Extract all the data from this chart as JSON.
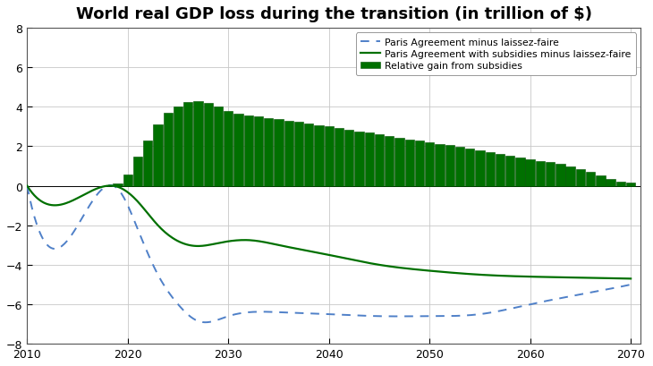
{
  "title": "World real GDP loss during the transition (in trillion of $)",
  "title_fontsize": 13,
  "title_fontweight": "bold",
  "xlim": [
    2010,
    2071
  ],
  "ylim": [
    -8,
    8
  ],
  "yticks": [
    -8,
    -6,
    -4,
    -2,
    0,
    2,
    4,
    6,
    8
  ],
  "xticks": [
    2010,
    2020,
    2030,
    2040,
    2050,
    2060,
    2070
  ],
  "legend_labels": [
    "Paris Agreement minus laissez-faire",
    "Paris Agreement with subsidies minus laissez-faire",
    "Relative gain from subsidies"
  ],
  "dashed_color": "#4f80c8",
  "solid_color": "#007000",
  "bar_color": "#007000",
  "bar_edge_color": "#005000",
  "background_color": "#ffffff",
  "grid_color": "#c8c8c8"
}
